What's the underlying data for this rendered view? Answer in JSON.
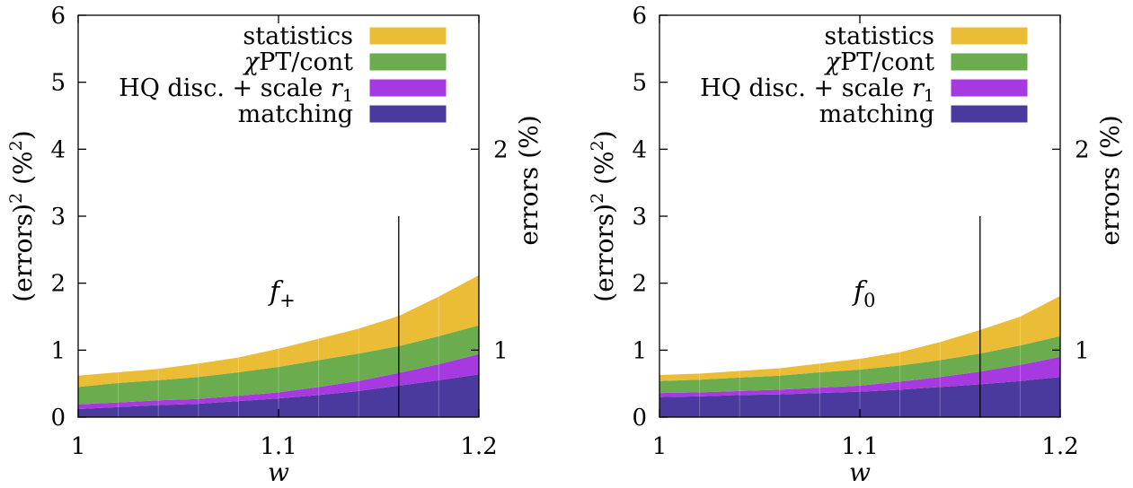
{
  "chart_data": [
    {
      "type": "area",
      "stacked": true,
      "x": [
        1.0,
        1.02,
        1.04,
        1.06,
        1.08,
        1.1,
        1.12,
        1.14,
        1.16,
        1.18,
        1.2
      ],
      "series": [
        {
          "name": "matching",
          "color": "#4b3a9e",
          "values": [
            0.12,
            0.15,
            0.18,
            0.2,
            0.24,
            0.28,
            0.33,
            0.39,
            0.47,
            0.55,
            0.64
          ]
        },
        {
          "name": "HQ disc. + scale r₁",
          "color": "#a63ae0",
          "values": [
            0.07,
            0.07,
            0.07,
            0.07,
            0.08,
            0.09,
            0.12,
            0.15,
            0.19,
            0.24,
            0.3
          ]
        },
        {
          "name": "χPT/cont",
          "color": "#6aac4e",
          "values": [
            0.26,
            0.29,
            0.3,
            0.33,
            0.35,
            0.38,
            0.4,
            0.41,
            0.4,
            0.42,
            0.43
          ]
        },
        {
          "name": "statistics",
          "color": "#ebbc35",
          "values": [
            0.17,
            0.16,
            0.17,
            0.2,
            0.22,
            0.27,
            0.32,
            0.37,
            0.45,
            0.59,
            0.75
          ]
        }
      ],
      "annotation": "f+",
      "vertical_line_x": 1.16,
      "vertical_line_top": 3,
      "xlabel": "w",
      "ylabel": "(errors)² (%²)",
      "y2label": "errors (%)",
      "xlim": [
        1.0,
        1.2
      ],
      "ylim": [
        0,
        6
      ],
      "xticks": [
        "1",
        "1.1",
        "1.2"
      ],
      "yticks": [
        "0",
        "1",
        "2",
        "3",
        "4",
        "5",
        "6"
      ],
      "y2ticks": [
        "1",
        "2"
      ],
      "legend": "top-right",
      "grid": false
    },
    {
      "type": "area",
      "stacked": true,
      "x": [
        1.0,
        1.02,
        1.04,
        1.06,
        1.08,
        1.1,
        1.12,
        1.14,
        1.16,
        1.18,
        1.2
      ],
      "series": [
        {
          "name": "matching",
          "color": "#4b3a9e",
          "values": [
            0.3,
            0.31,
            0.33,
            0.34,
            0.36,
            0.38,
            0.41,
            0.45,
            0.49,
            0.54,
            0.6
          ]
        },
        {
          "name": "HQ disc. + scale r₁",
          "color": "#a63ae0",
          "values": [
            0.06,
            0.06,
            0.06,
            0.07,
            0.08,
            0.09,
            0.12,
            0.15,
            0.19,
            0.24,
            0.3
          ]
        },
        {
          "name": "χPT/cont",
          "color": "#6aac4e",
          "values": [
            0.18,
            0.19,
            0.2,
            0.21,
            0.23,
            0.24,
            0.24,
            0.25,
            0.27,
            0.29,
            0.31
          ]
        },
        {
          "name": "statistics",
          "color": "#ebbc35",
          "values": [
            0.09,
            0.09,
            0.1,
            0.11,
            0.13,
            0.16,
            0.2,
            0.27,
            0.35,
            0.43,
            0.6
          ]
        }
      ],
      "annotation": "f0",
      "vertical_line_x": 1.16,
      "vertical_line_top": 3,
      "xlabel": "w",
      "ylabel": "(errors)² (%²)",
      "y2label": "errors (%)",
      "xlim": [
        1.0,
        1.2
      ],
      "ylim": [
        0,
        6
      ],
      "xticks": [
        "1",
        "1.1",
        "1.2"
      ],
      "yticks": [
        "0",
        "1",
        "2",
        "3",
        "4",
        "5",
        "6"
      ],
      "y2ticks": [
        "1",
        "2"
      ],
      "legend": "top-right",
      "grid": false
    }
  ]
}
